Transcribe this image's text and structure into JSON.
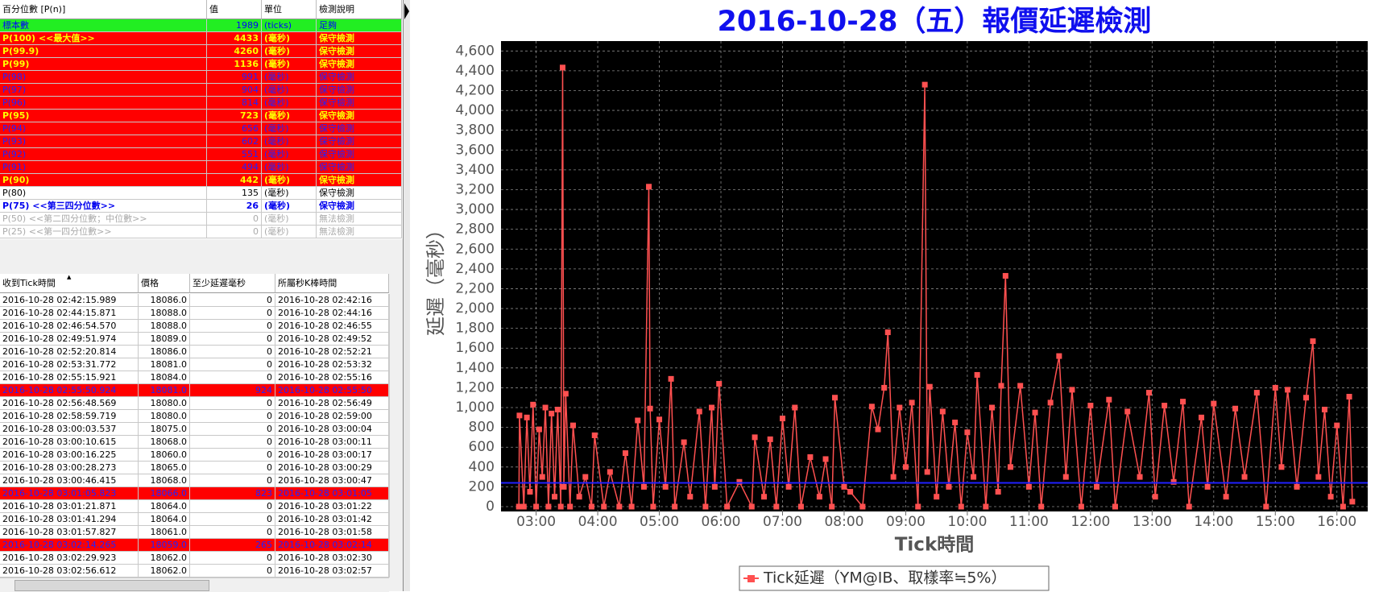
{
  "top_table": {
    "headers": [
      "百分位數 [P(n)]",
      "值",
      "單位",
      "檢測說明"
    ],
    "rows": [
      {
        "cells": [
          "標本數",
          "1989",
          "(ticks)",
          "足夠"
        ],
        "bg": "#22ee22",
        "fg": "#0000ff",
        "bold": false
      },
      {
        "cells": [
          "P(100)  <<最大值>>",
          "4433",
          "(毫秒)",
          "保守檢測"
        ],
        "bg": "#ff0000",
        "fg": "#ffff00",
        "bold": true
      },
      {
        "cells": [
          "P(99.9)",
          "4260",
          "(毫秒)",
          "保守檢測"
        ],
        "bg": "#ff0000",
        "fg": "#ffff00",
        "bold": true
      },
      {
        "cells": [
          "P(99)",
          "1136",
          "(毫秒)",
          "保守檢測"
        ],
        "bg": "#ff0000",
        "fg": "#ffff00",
        "bold": true
      },
      {
        "cells": [
          "P(98)",
          "991",
          "(毫秒)",
          "保守檢測"
        ],
        "bg": "#ff0000",
        "fg": "#2222ff",
        "bold": false
      },
      {
        "cells": [
          "P(97)",
          "904",
          "(毫秒)",
          "保守檢測"
        ],
        "bg": "#ff0000",
        "fg": "#2222ff",
        "bold": false
      },
      {
        "cells": [
          "P(96)",
          "814",
          "(毫秒)",
          "保守檢測"
        ],
        "bg": "#ff0000",
        "fg": "#2222ff",
        "bold": false
      },
      {
        "cells": [
          "P(95)",
          "723",
          "(毫秒)",
          "保守檢測"
        ],
        "bg": "#ff0000",
        "fg": "#ffff00",
        "bold": true
      },
      {
        "cells": [
          "P(94)",
          "656",
          "(毫秒)",
          "保守檢測"
        ],
        "bg": "#ff0000",
        "fg": "#2222ff",
        "bold": false
      },
      {
        "cells": [
          "P(93)",
          "602",
          "(毫秒)",
          "保守檢測"
        ],
        "bg": "#ff0000",
        "fg": "#2222ff",
        "bold": false
      },
      {
        "cells": [
          "P(92)",
          "551",
          "(毫秒)",
          "保守檢測"
        ],
        "bg": "#ff0000",
        "fg": "#2222ff",
        "bold": false
      },
      {
        "cells": [
          "P(91)",
          "494",
          "(毫秒)",
          "保守檢測"
        ],
        "bg": "#ff0000",
        "fg": "#2222ff",
        "bold": false
      },
      {
        "cells": [
          "P(90)",
          "442",
          "(毫秒)",
          "保守檢測"
        ],
        "bg": "#ff0000",
        "fg": "#ffff00",
        "bold": true
      },
      {
        "cells": [
          "P(80)",
          "135",
          "(毫秒)",
          "保守檢測"
        ],
        "bg": "#ffffff",
        "fg": "#000000",
        "bold": false
      },
      {
        "cells": [
          "P(75)  <<第三四分位數>>",
          "26",
          "(毫秒)",
          "保守檢測"
        ],
        "bg": "#ffffff",
        "fg": "#0000ee",
        "bold": true
      },
      {
        "cells": [
          "P(50)  <<第二四分位數；中位數>>",
          "0",
          "(毫秒)",
          "無法檢測"
        ],
        "bg": "#ffffff",
        "fg": "#aaaaaa",
        "bold": false
      },
      {
        "cells": [
          "P(25)  <<第一四分位數>>",
          "0",
          "(毫秒)",
          "無法檢測"
        ],
        "bg": "#ffffff",
        "fg": "#aaaaaa",
        "bold": false
      }
    ]
  },
  "bottom_table": {
    "headers": [
      "收到Tick時間",
      "價格",
      "至少延遲毫秒",
      "所屬秒K棒時間"
    ],
    "rows": [
      [
        "2016-10-28 02:42:15.989",
        "18086.0",
        "0",
        "2016-10-28 02:42:16"
      ],
      [
        "2016-10-28 02:44:15.871",
        "18088.0",
        "0",
        "2016-10-28 02:44:16"
      ],
      [
        "2016-10-28 02:46:54.570",
        "18088.0",
        "0",
        "2016-10-28 02:46:55"
      ],
      [
        "2016-10-28 02:49:51.974",
        "18089.0",
        "0",
        "2016-10-28 02:49:52"
      ],
      [
        "2016-10-28 02:52:20.814",
        "18086.0",
        "0",
        "2016-10-28 02:52:21"
      ],
      [
        "2016-10-28 02:53:31.772",
        "18081.0",
        "0",
        "2016-10-28 02:53:32"
      ],
      [
        "2016-10-28 02:55:15.921",
        "18084.0",
        "0",
        "2016-10-28 02:55:16"
      ],
      [
        "2016-10-28 02:55:50.924",
        "18081.0",
        "924",
        "2016-10-28 02:55:50"
      ],
      [
        "2016-10-28 02:56:48.569",
        "18080.0",
        "0",
        "2016-10-28 02:56:49"
      ],
      [
        "2016-10-28 02:58:59.719",
        "18080.0",
        "0",
        "2016-10-28 02:59:00"
      ],
      [
        "2016-10-28 03:00:03.537",
        "18075.0",
        "0",
        "2016-10-28 03:00:04"
      ],
      [
        "2016-10-28 03:00:10.615",
        "18068.0",
        "0",
        "2016-10-28 03:00:11"
      ],
      [
        "2016-10-28 03:00:16.225",
        "18060.0",
        "0",
        "2016-10-28 03:00:17"
      ],
      [
        "2016-10-28 03:00:28.273",
        "18065.0",
        "0",
        "2016-10-28 03:00:29"
      ],
      [
        "2016-10-28 03:00:46.415",
        "18068.0",
        "0",
        "2016-10-28 03:00:47"
      ],
      [
        "2016-10-28 03:01:05.823",
        "18066.0",
        "823",
        "2016-10-28 03:01:05"
      ],
      [
        "2016-10-28 03:01:21.871",
        "18064.0",
        "0",
        "2016-10-28 03:01:22"
      ],
      [
        "2016-10-28 03:01:41.294",
        "18064.0",
        "0",
        "2016-10-28 03:01:42"
      ],
      [
        "2016-10-28 03:01:57.827",
        "18061.0",
        "0",
        "2016-10-28 03:01:58"
      ],
      [
        "2016-10-28 03:02:14.265",
        "18059.0",
        "265",
        "2016-10-28 03:02:14"
      ],
      [
        "2016-10-28 03:02:29.923",
        "18062.0",
        "0",
        "2016-10-28 03:02:30"
      ],
      [
        "2016-10-28 03:02:56.612",
        "18062.0",
        "0",
        "2016-10-28 03:02:57"
      ]
    ],
    "highlight_rows": [
      7,
      15,
      19
    ]
  },
  "chart_data": {
    "type": "line",
    "title": "2016-10-28（五）報價延遲檢測",
    "x_label": "Tick時間",
    "y_label": "延遲（毫秒）",
    "xlim": [
      2.43,
      16.5
    ],
    "ylim": [
      0,
      4700
    ],
    "xticks": [
      {
        "value": 3,
        "label": "03:00"
      },
      {
        "value": 4,
        "label": "04:00"
      },
      {
        "value": 5,
        "label": "05:00"
      },
      {
        "value": 6,
        "label": "06:00"
      },
      {
        "value": 7,
        "label": "07:00"
      },
      {
        "value": 8,
        "label": "08:00"
      },
      {
        "value": 9,
        "label": "09:00"
      },
      {
        "value": 10,
        "label": "10:00"
      },
      {
        "value": 11,
        "label": "11:00"
      },
      {
        "value": 12,
        "label": "12:00"
      },
      {
        "value": 13,
        "label": "13:00"
      },
      {
        "value": 14,
        "label": "14:00"
      },
      {
        "value": 15,
        "label": "15:00"
      },
      {
        "value": 16,
        "label": "16:00"
      }
    ],
    "yticks": [
      0,
      200,
      400,
      600,
      800,
      {
        "value": 1000,
        "label": "1,000"
      },
      {
        "value": 1200,
        "label": "1,200"
      },
      {
        "value": 1400,
        "label": "1,400"
      },
      {
        "value": 1600,
        "label": "1,600"
      },
      {
        "value": 1800,
        "label": "1,800"
      },
      {
        "value": 2000,
        "label": "2,000"
      },
      {
        "value": 2200,
        "label": "2,200"
      },
      {
        "value": 2400,
        "label": "2,400"
      },
      {
        "value": 2600,
        "label": "2,600"
      },
      {
        "value": 2800,
        "label": "2,800"
      },
      {
        "value": 3000,
        "label": "3,000"
      },
      {
        "value": 3200,
        "label": "3,200"
      },
      {
        "value": 3400,
        "label": "3,400"
      },
      {
        "value": 3600,
        "label": "3,600"
      },
      {
        "value": 3800,
        "label": "3,800"
      },
      {
        "value": 4000,
        "label": "4,000"
      },
      {
        "value": 4200,
        "label": "4,200"
      },
      {
        "value": 4400,
        "label": "4,400"
      },
      {
        "value": 4600,
        "label": "4,600"
      }
    ],
    "grid": true,
    "background": "#000000",
    "reference_line": {
      "value": 240,
      "color": "#2020ff"
    },
    "series": [
      {
        "name": "Tick延遲（YM@IB、取樣率≒5%）",
        "color": "#ff5050",
        "x": [
          2.72,
          2.73,
          2.8,
          2.85,
          2.9,
          2.95,
          3.0,
          3.05,
          3.1,
          3.15,
          3.2,
          3.25,
          3.3,
          3.35,
          3.4,
          3.43,
          3.45,
          3.48,
          3.55,
          3.6,
          3.7,
          3.8,
          3.9,
          3.95,
          4.1,
          4.2,
          4.35,
          4.45,
          4.55,
          4.65,
          4.75,
          4.83,
          4.85,
          4.9,
          5.0,
          5.1,
          5.19,
          5.25,
          5.4,
          5.5,
          5.65,
          5.75,
          5.85,
          5.9,
          5.97,
          6.1,
          6.3,
          6.5,
          6.55,
          6.7,
          6.8,
          6.9,
          7.0,
          7.1,
          7.2,
          7.3,
          7.45,
          7.6,
          7.7,
          7.8,
          7.85,
          8.0,
          8.1,
          8.3,
          8.45,
          8.55,
          8.65,
          8.71,
          8.8,
          8.9,
          9.0,
          9.1,
          9.2,
          9.31,
          9.35,
          9.39,
          9.5,
          9.6,
          9.7,
          9.8,
          9.9,
          10.0,
          10.1,
          10.16,
          10.3,
          10.4,
          10.5,
          10.55,
          10.62,
          10.7,
          10.86,
          11.0,
          11.1,
          11.2,
          11.35,
          11.49,
          11.6,
          11.7,
          11.85,
          12.0,
          12.1,
          12.3,
          12.4,
          12.6,
          12.8,
          12.95,
          13.05,
          13.2,
          13.35,
          13.5,
          13.6,
          13.8,
          13.9,
          14.0,
          14.2,
          14.35,
          14.5,
          14.7,
          14.85,
          15.0,
          15.1,
          15.2,
          15.35,
          15.5,
          15.61,
          15.7,
          15.8,
          15.9,
          16.0,
          16.1,
          16.2,
          16.25
        ],
        "values": [
          0,
          920,
          0,
          900,
          150,
          1030,
          0,
          780,
          300,
          1000,
          0,
          940,
          100,
          980,
          0,
          4433,
          200,
          1140,
          0,
          820,
          100,
          300,
          0,
          720,
          0,
          350,
          0,
          540,
          0,
          870,
          200,
          3230,
          990,
          0,
          880,
          200,
          1290,
          0,
          650,
          100,
          960,
          0,
          1000,
          200,
          1240,
          0,
          250,
          0,
          700,
          100,
          680,
          0,
          890,
          200,
          1000,
          0,
          500,
          100,
          480,
          0,
          1100,
          200,
          150,
          0,
          1010,
          780,
          1200,
          1760,
          300,
          1000,
          400,
          1050,
          0,
          4260,
          350,
          1210,
          100,
          960,
          200,
          850,
          0,
          750,
          300,
          1330,
          0,
          1000,
          150,
          1220,
          2330,
          400,
          1220,
          200,
          950,
          0,
          1050,
          1520,
          300,
          1180,
          0,
          1020,
          200,
          1080,
          0,
          960,
          300,
          1150,
          100,
          1020,
          250,
          1060,
          0,
          900,
          200,
          1040,
          100,
          990,
          300,
          1150,
          0,
          1200,
          400,
          1180,
          200,
          1100,
          1670,
          300,
          980,
          100,
          820,
          0,
          1110,
          50
        ]
      }
    ]
  }
}
